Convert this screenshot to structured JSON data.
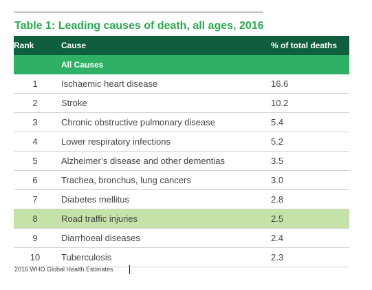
{
  "title": "Table 1: Leading causes of death, all ages, 2016",
  "headers": {
    "rank": "Rank",
    "cause": "Cause",
    "percent": "% of total deaths"
  },
  "all_causes": {
    "rank": "",
    "cause": "All Causes",
    "percent": ""
  },
  "rows": [
    {
      "rank": "1",
      "cause": "Ischaemic heart disease",
      "percent": "16.6"
    },
    {
      "rank": "2",
      "cause": "Stroke",
      "percent": "10.2"
    },
    {
      "rank": "3",
      "cause": "Chronic obstructive pulmonary disease",
      "percent": "5.4"
    },
    {
      "rank": "4",
      "cause": "Lower respiratory infections",
      "percent": "5.2"
    },
    {
      "rank": "5",
      "cause": "Alzheimer’s disease and other dementias",
      "percent": "3.5"
    },
    {
      "rank": "6",
      "cause": "Trachea, bronchus, lung cancers",
      "percent": "3.0"
    },
    {
      "rank": "7",
      "cause": "Diabetes mellitus",
      "percent": "2.8"
    },
    {
      "rank": "8",
      "cause": "Road traffic injuries",
      "percent": "2.5"
    },
    {
      "rank": "9",
      "cause": "Diarrhoeal diseases",
      "percent": "2.4"
    },
    {
      "rank": "10",
      "cause": "Tuberculosis",
      "percent": "2.3"
    }
  ],
  "highlighted_rank": "8",
  "source": "2016 WHO Global Health Estimates",
  "colors": {
    "title": "#2aa84f",
    "header_bg": "#0f5f3e",
    "all_causes_bg": "#2eb065",
    "highlight_bg": "#c5e2a9"
  }
}
